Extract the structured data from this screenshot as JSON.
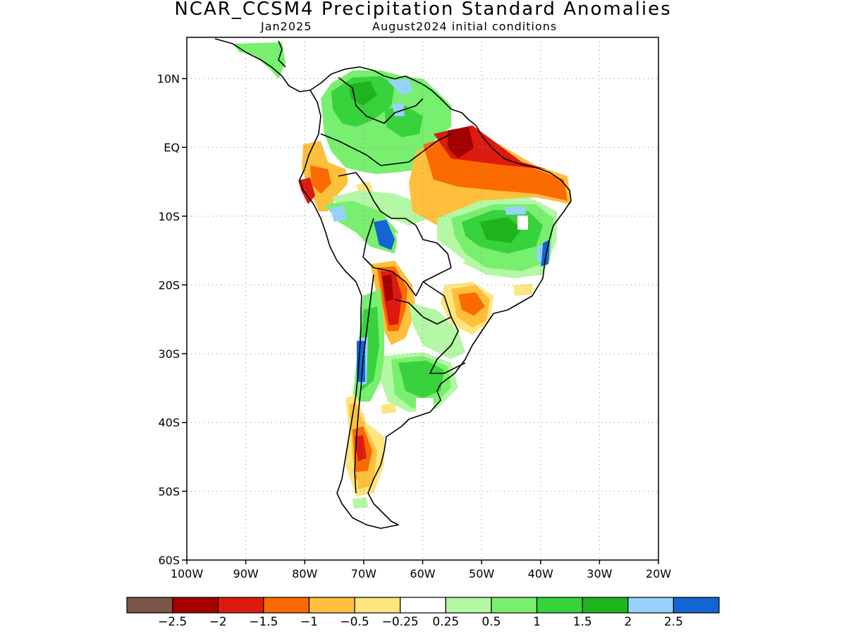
{
  "header": {
    "title": "NCAR_CCSM4 Precipitation Standard Anomalies",
    "valid_month": "Jan2025",
    "initial_conditions": "August2024 initial conditions"
  },
  "map": {
    "region": "South America",
    "lon_range": [
      -100,
      -20
    ],
    "lat_range": [
      -60,
      16
    ],
    "lat_ticks": [
      {
        "value": 10,
        "label": "10N"
      },
      {
        "value": 0,
        "label": "EQ"
      },
      {
        "value": -10,
        "label": "10S"
      },
      {
        "value": -20,
        "label": "20S"
      },
      {
        "value": -30,
        "label": "30S"
      },
      {
        "value": -40,
        "label": "40S"
      },
      {
        "value": -50,
        "label": "50S"
      },
      {
        "value": -60,
        "label": "60S"
      }
    ],
    "lon_ticks": [
      {
        "value": -100,
        "label": "100W"
      },
      {
        "value": -90,
        "label": "90W"
      },
      {
        "value": -80,
        "label": "80W"
      },
      {
        "value": -70,
        "label": "70W"
      },
      {
        "value": -60,
        "label": "60W"
      },
      {
        "value": -50,
        "label": "50W"
      },
      {
        "value": -40,
        "label": "40W"
      },
      {
        "value": -30,
        "label": "30W"
      },
      {
        "value": -20,
        "label": "20W"
      }
    ],
    "grid": "dotted"
  },
  "colorbar": {
    "colors": [
      "#7a5548",
      "#a30000",
      "#dc1a10",
      "#fb6a00",
      "#fdbf3c",
      "#fee57d",
      "#ffffff",
      "#b4f7a4",
      "#78ef6e",
      "#37d23c",
      "#1eb41e",
      "#96d2fa",
      "#1464d2"
    ],
    "labels": [
      "-2.5",
      "-2",
      "-1.5",
      "-1",
      "-0.5",
      "-0.25",
      "0.25",
      "0.5",
      "1",
      "1.5",
      "2",
      "2.5"
    ]
  }
}
